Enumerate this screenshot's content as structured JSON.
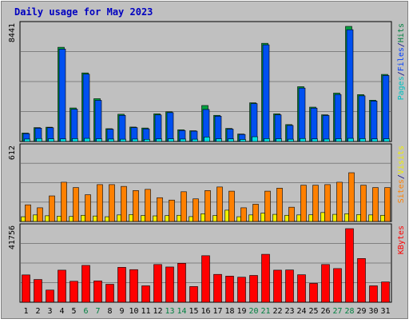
{
  "chart_data": [
    {
      "type": "bar",
      "title": "Daily usage for May 2023",
      "panel": "hits-files-pages",
      "ymax_label": "8441",
      "ymax": 8441,
      "right_labels": [
        {
          "text": "Pages",
          "color": "#00c0c0"
        },
        {
          "text": "/",
          "color": "#000080"
        },
        {
          "text": "Files",
          "color": "#0040ff"
        },
        {
          "text": "/",
          "color": "#000080"
        },
        {
          "text": "Hits",
          "color": "#008040"
        }
      ],
      "categories": [
        "1",
        "2",
        "3",
        "4",
        "5",
        "6",
        "7",
        "8",
        "9",
        "10",
        "11",
        "12",
        "13",
        "14",
        "15",
        "16",
        "17",
        "18",
        "19",
        "20",
        "21",
        "22",
        "23",
        "24",
        "25",
        "26",
        "27",
        "28",
        "29",
        "30",
        "31"
      ],
      "series": [
        {
          "name": "Hits",
          "color": "#00a040",
          "values": [
            620,
            1020,
            1050,
            6910,
            2460,
            5030,
            3140,
            940,
            2000,
            1060,
            990,
            2030,
            2180,
            860,
            790,
            2640,
            1920,
            960,
            550,
            2840,
            7200,
            2030,
            1240,
            4020,
            2520,
            1960,
            3550,
            8441,
            3440,
            3030,
            4920
          ]
        },
        {
          "name": "Files",
          "color": "#0050f0",
          "values": [
            580,
            980,
            1010,
            6780,
            2370,
            4940,
            3020,
            900,
            1920,
            1020,
            930,
            1950,
            2120,
            810,
            760,
            2350,
            1860,
            910,
            520,
            2780,
            7090,
            1960,
            1180,
            3920,
            2450,
            1910,
            3450,
            8200,
            3350,
            2970,
            4840
          ]
        },
        {
          "name": "Pages",
          "color": "#00e0e0",
          "values": [
            180,
            220,
            200,
            190,
            210,
            230,
            200,
            180,
            170,
            180,
            160,
            190,
            200,
            180,
            170,
            330,
            200,
            190,
            150,
            350,
            210,
            200,
            170,
            220,
            190,
            180,
            200,
            230,
            210,
            190,
            200
          ]
        }
      ]
    },
    {
      "type": "bar",
      "panel": "visits-sites",
      "ymax_label": "612",
      "ymax": 612,
      "right_labels": [
        {
          "text": "Sites",
          "color": "#ff8000"
        },
        {
          "text": "/",
          "color": "#000080"
        },
        {
          "text": "Visits",
          "color": "#f0f000"
        }
      ],
      "categories": [
        "1",
        "2",
        "3",
        "4",
        "5",
        "6",
        "7",
        "8",
        "9",
        "10",
        "11",
        "12",
        "13",
        "14",
        "15",
        "16",
        "17",
        "18",
        "19",
        "20",
        "21",
        "22",
        "23",
        "24",
        "25",
        "26",
        "27",
        "28",
        "29",
        "30",
        "31"
      ],
      "series": [
        {
          "name": "Visits",
          "color": "#f0f000",
          "values": [
            40,
            55,
            48,
            45,
            42,
            52,
            46,
            40,
            55,
            58,
            50,
            47,
            49,
            52,
            41,
            65,
            50,
            95,
            40,
            55,
            70,
            60,
            52,
            55,
            56,
            75,
            60,
            65,
            58,
            55,
            52
          ]
        },
        {
          "name": "Sites",
          "color": "#ff8000",
          "values": [
            140,
            115,
            215,
            330,
            285,
            225,
            310,
            310,
            295,
            260,
            270,
            200,
            180,
            250,
            190,
            260,
            290,
            255,
            115,
            145,
            255,
            280,
            120,
            305,
            305,
            310,
            330,
            410,
            305,
            285,
            285
          ]
        }
      ]
    },
    {
      "type": "bar",
      "panel": "kbytes",
      "ymax_label": "41756",
      "ymax": 41756,
      "right_labels": [
        {
          "text": "KBytes",
          "color": "#ff0000"
        }
      ],
      "categories": [
        "1",
        "2",
        "3",
        "4",
        "5",
        "6",
        "7",
        "8",
        "9",
        "10",
        "11",
        "12",
        "13",
        "14",
        "15",
        "16",
        "17",
        "18",
        "19",
        "20",
        "21",
        "22",
        "23",
        "24",
        "25",
        "26",
        "27",
        "28",
        "29",
        "30",
        "31"
      ],
      "series": [
        {
          "name": "KBytes",
          "color": "#ff0000",
          "values": [
            15500,
            12900,
            6900,
            18200,
            11900,
            20900,
            12100,
            10200,
            19800,
            18500,
            9300,
            21400,
            20000,
            22100,
            8900,
            26400,
            15800,
            14800,
            14200,
            15200,
            27200,
            18200,
            18300,
            15600,
            10700,
            21400,
            19100,
            41756,
            24800,
            9300,
            11500
          ]
        }
      ]
    }
  ],
  "x_labels": [
    {
      "text": "1",
      "color": "#000000"
    },
    {
      "text": "2",
      "color": "#000000"
    },
    {
      "text": "3",
      "color": "#000000"
    },
    {
      "text": "4",
      "color": "#000000"
    },
    {
      "text": "5",
      "color": "#000000"
    },
    {
      "text": "6",
      "color": "#008040"
    },
    {
      "text": "7",
      "color": "#008040"
    },
    {
      "text": "8",
      "color": "#000000"
    },
    {
      "text": "9",
      "color": "#000000"
    },
    {
      "text": "10",
      "color": "#000000"
    },
    {
      "text": "11",
      "color": "#000000"
    },
    {
      "text": "12",
      "color": "#000000"
    },
    {
      "text": "13",
      "color": "#008040"
    },
    {
      "text": "14",
      "color": "#008040"
    },
    {
      "text": "15",
      "color": "#000000"
    },
    {
      "text": "16",
      "color": "#000000"
    },
    {
      "text": "17",
      "color": "#000000"
    },
    {
      "text": "18",
      "color": "#000000"
    },
    {
      "text": "19",
      "color": "#000000"
    },
    {
      "text": "20",
      "color": "#008040"
    },
    {
      "text": "21",
      "color": "#008040"
    },
    {
      "text": "22",
      "color": "#000000"
    },
    {
      "text": "23",
      "color": "#000000"
    },
    {
      "text": "24",
      "color": "#000000"
    },
    {
      "text": "25",
      "color": "#000000"
    },
    {
      "text": "26",
      "color": "#000000"
    },
    {
      "text": "27",
      "color": "#008040"
    },
    {
      "text": "28",
      "color": "#008040"
    },
    {
      "text": "29",
      "color": "#000000"
    },
    {
      "text": "30",
      "color": "#000000"
    },
    {
      "text": "31",
      "color": "#000000"
    }
  ],
  "colors": {
    "background": "#c0c0c0",
    "title": "#0000c0",
    "grid": "#808080"
  }
}
